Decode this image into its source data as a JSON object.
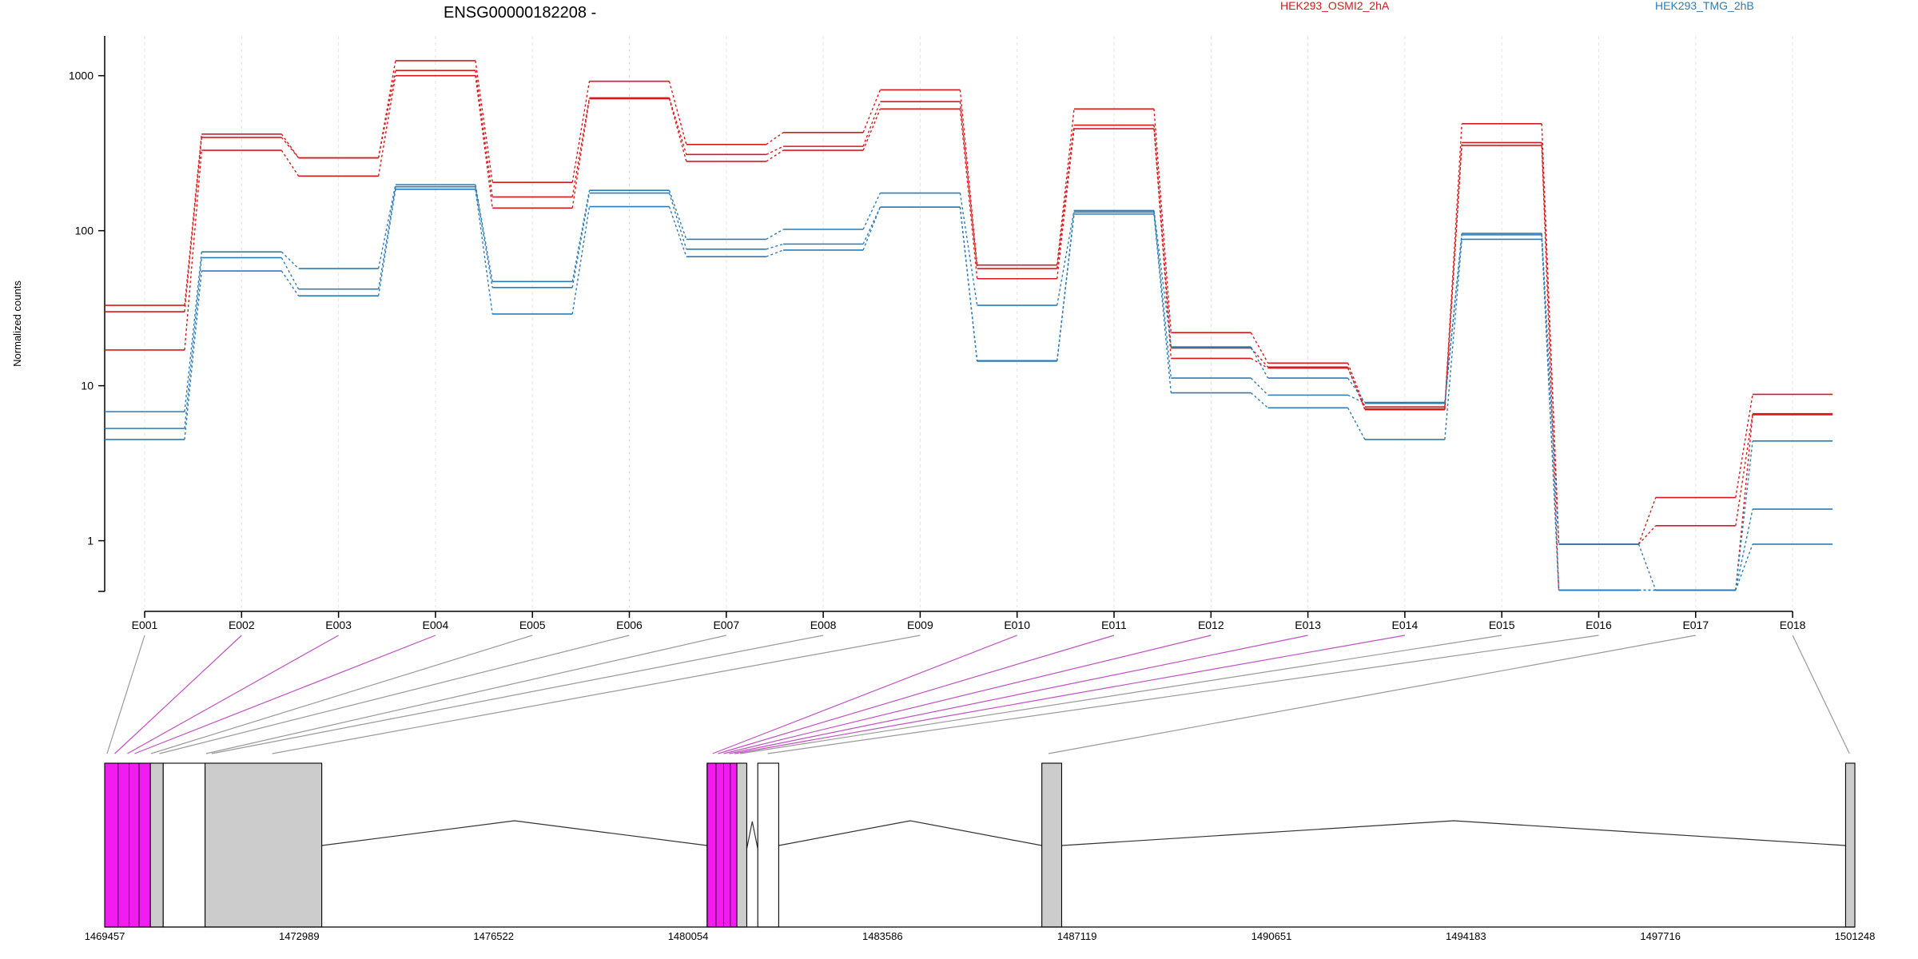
{
  "chart_data": {
    "type": "line",
    "title": "ENSG00000182208 -",
    "ylabel": "Normalized counts",
    "xlabel": "",
    "y_scale": "log",
    "ylim": [
      0.5,
      1700
    ],
    "y_ticks": [
      1,
      10,
      100,
      1000
    ],
    "y_tick_labels": [
      "1",
      "10",
      "100",
      "1000"
    ],
    "grid": "vertical dashed lines at exon bins",
    "categories": [
      "E001",
      "E002",
      "E003",
      "E004",
      "E005",
      "E006",
      "E007",
      "E008",
      "E009",
      "E010",
      "E011",
      "E012",
      "E013",
      "E014",
      "E015",
      "E016",
      "E017",
      "E018"
    ],
    "legend": [
      {
        "label": "HEK293_OSMI2_2hA",
        "color": "#d7191c"
      },
      {
        "label": "HEK293_TMG_2hB",
        "color": "#2c7bb6"
      }
    ],
    "series": [
      {
        "condition_label_index": 0,
        "color": "#d7191c",
        "values": [
          33,
          420,
          295,
          1250,
          205,
          920,
          360,
          430,
          810,
          60,
          610,
          22,
          14,
          7.3,
          490,
          0.95,
          1.9,
          8.8
        ]
      },
      {
        "condition_label_index": 0,
        "color": "#d7191c",
        "values": [
          30,
          400,
          295,
          1080,
          165,
          720,
          310,
          350,
          680,
          57,
          480,
          17.5,
          13.2,
          7.0,
          370,
          0.95,
          1.25,
          6.6
        ]
      },
      {
        "condition_label_index": 0,
        "color": "#d7191c",
        "values": [
          17,
          330,
          225,
          1000,
          140,
          710,
          280,
          330,
          610,
          49,
          455,
          15,
          13.0,
          7.1,
          355,
          0.48,
          0.48,
          6.5
        ]
      },
      {
        "condition_label_index": 1,
        "color": "#2c7bb6",
        "values": [
          6.8,
          73,
          57,
          198,
          47,
          182,
          88,
          102,
          175,
          33,
          135,
          17.8,
          11.2,
          7.8,
          96,
          0.95,
          0.48,
          1.6
        ]
      },
      {
        "condition_label_index": 1,
        "color": "#2c7bb6",
        "values": [
          5.3,
          67,
          42,
          192,
          43,
          175,
          76,
          82,
          142,
          14.5,
          132,
          11.2,
          8.7,
          7.7,
          94,
          0.48,
          0.48,
          0.95
        ]
      },
      {
        "condition_label_index": 1,
        "color": "#2c7bb6",
        "values": [
          4.5,
          55,
          38,
          185,
          29,
          143,
          68,
          75,
          142,
          14.4,
          128,
          9.0,
          7.2,
          4.5,
          88,
          0.48,
          0.48,
          4.4
        ]
      }
    ],
    "gene_model": {
      "coordinates": [
        "1469457",
        "1472989",
        "1476522",
        "1480054",
        "1483586",
        "1487119",
        "1490651",
        "1494183",
        "1497716",
        "1501248"
      ],
      "start": 1469457,
      "end": 1501248,
      "exon_blocks": [
        {
          "start": 1469457,
          "end": 1470287,
          "fill": "#f01cf0",
          "stroke": "#000000"
        },
        {
          "start": 1470287,
          "end": 1470520,
          "fill": "#cccccc",
          "stroke": "#000000"
        },
        {
          "start": 1470520,
          "end": 1471280,
          "fill": "#ffffff",
          "stroke": "#000000"
        },
        {
          "start": 1471280,
          "end": 1473400,
          "fill": "#cccccc",
          "stroke": "#000000"
        },
        {
          "start": 1480400,
          "end": 1480940,
          "fill": "#f01cf0",
          "stroke": "#000000"
        },
        {
          "start": 1480940,
          "end": 1481120,
          "fill": "#cccccc",
          "stroke": "#000000"
        },
        {
          "start": 1481320,
          "end": 1481700,
          "fill": "#ffffff",
          "stroke": "#000000"
        },
        {
          "start": 1486480,
          "end": 1486840,
          "fill": "#cccccc",
          "stroke": "#000000"
        },
        {
          "start": 1501080,
          "end": 1501248,
          "fill": "#cccccc",
          "stroke": "#000000"
        }
      ],
      "introns": [
        [
          1473400,
          1480400
        ],
        [
          1481700,
          1486480
        ],
        [
          1486840,
          1501080
        ]
      ],
      "small_introns": [
        [
          1470520,
          1471280
        ],
        [
          1481120,
          1481320
        ]
      ],
      "bin_connectors": [
        {
          "bin": "E001",
          "genomic": 1469500,
          "color": "#999999"
        },
        {
          "bin": "E002",
          "genomic": 1469640,
          "color": "#c050c0"
        },
        {
          "bin": "E003",
          "genomic": 1469870,
          "color": "#c050c0"
        },
        {
          "bin": "E004",
          "genomic": 1470000,
          "color": "#c050c0"
        },
        {
          "bin": "E005",
          "genomic": 1470300,
          "color": "#999999"
        },
        {
          "bin": "E006",
          "genomic": 1470450,
          "color": "#999999"
        },
        {
          "bin": "E007",
          "genomic": 1471300,
          "color": "#999999"
        },
        {
          "bin": "E008",
          "genomic": 1471400,
          "color": "#999999"
        },
        {
          "bin": "E009",
          "genomic": 1472500,
          "color": "#999999"
        },
        {
          "bin": "E010",
          "genomic": 1480500,
          "color": "#c050c0"
        },
        {
          "bin": "E011",
          "genomic": 1480600,
          "color": "#c050c0"
        },
        {
          "bin": "E012",
          "genomic": 1480700,
          "color": "#c050c0"
        },
        {
          "bin": "E013",
          "genomic": 1480800,
          "color": "#c050c0"
        },
        {
          "bin": "E014",
          "genomic": 1480900,
          "color": "#c050c0"
        },
        {
          "bin": "E015",
          "genomic": 1481000,
          "color": "#999999"
        },
        {
          "bin": "E016",
          "genomic": 1481500,
          "color": "#999999"
        },
        {
          "bin": "E017",
          "genomic": 1486600,
          "color": "#999999"
        },
        {
          "bin": "E018",
          "genomic": 1501150,
          "color": "#999999"
        }
      ]
    }
  }
}
